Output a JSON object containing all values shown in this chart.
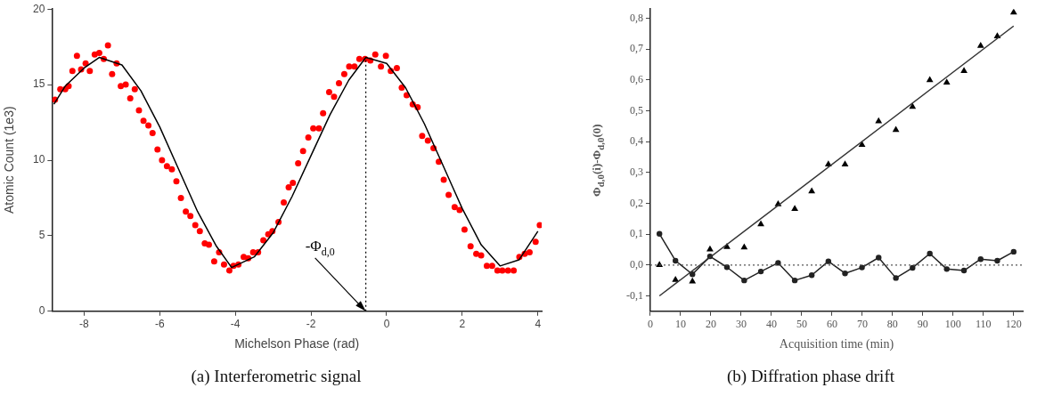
{
  "chart_data": [
    {
      "type": "scatter",
      "title": "(a) Interferometric signal",
      "xlabel": "Michelson Phase (rad)",
      "ylabel": "Atomic Count (1e3)",
      "xlim": [
        -8.85,
        4.1
      ],
      "ylim": [
        0,
        20
      ],
      "xticks": [
        -8,
        -6,
        -4,
        -2,
        0,
        2,
        4
      ],
      "yticks": [
        0,
        5,
        10,
        15,
        20
      ],
      "grid": false,
      "ref_lines": [
        {
          "axis": "x",
          "value": -0.55,
          "label": "-Φ$_{d,0}$",
          "color": "#000000",
          "line_style": "dotted"
        }
      ],
      "series": [
        {
          "type": "scatter",
          "color": "#ff0000",
          "marker": "circle",
          "x": [
            -8.77,
            -8.63,
            -8.5,
            -8.41,
            -8.31,
            -8.19,
            -8.08,
            -7.96,
            -7.85,
            -7.72,
            -7.6,
            -7.48,
            -7.37,
            -7.26,
            -7.14,
            -7.03,
            -6.9,
            -6.78,
            -6.66,
            -6.55,
            -6.43,
            -6.3,
            -6.19,
            -6.06,
            -5.94,
            -5.81,
            -5.68,
            -5.56,
            -5.44,
            -5.31,
            -5.19,
            -5.06,
            -4.94,
            -4.81,
            -4.7,
            -4.56,
            -4.43,
            -4.3,
            -4.16,
            -4.05,
            -3.92,
            -3.78,
            -3.66,
            -3.53,
            -3.4,
            -3.26,
            -3.13,
            -3.02,
            -2.86,
            -2.72,
            -2.59,
            -2.48,
            -2.34,
            -2.21,
            -2.07,
            -1.94,
            -1.79,
            -1.68,
            -1.52,
            -1.39,
            -1.26,
            -1.12,
            -0.99,
            -0.85,
            -0.72,
            -0.57,
            -0.43,
            -0.3,
            -0.15,
            -0.02,
            0.11,
            0.27,
            0.4,
            0.53,
            0.69,
            0.82,
            0.94,
            1.09,
            1.24,
            1.38,
            1.51,
            1.64,
            1.8,
            1.93,
            2.06,
            2.22,
            2.37,
            2.5,
            2.65,
            2.79,
            2.93,
            3.06,
            3.21,
            3.36,
            3.51,
            3.65,
            3.78,
            3.94,
            4.05
          ],
          "values": [
            14.0,
            14.7,
            14.7,
            14.9,
            15.9,
            16.9,
            16.0,
            16.4,
            15.9,
            17.0,
            17.1,
            16.7,
            17.6,
            15.7,
            16.4,
            14.9,
            15.0,
            14.1,
            14.7,
            13.3,
            12.6,
            12.3,
            11.8,
            10.7,
            10.0,
            9.6,
            9.4,
            8.6,
            7.5,
            6.6,
            6.3,
            5.7,
            5.3,
            4.5,
            4.4,
            3.3,
            3.9,
            3.1,
            2.7,
            3.0,
            3.1,
            3.6,
            3.5,
            3.9,
            3.9,
            4.7,
            5.1,
            5.3,
            5.9,
            7.2,
            8.2,
            8.5,
            9.8,
            10.6,
            11.5,
            12.1,
            12.1,
            13.1,
            14.5,
            14.2,
            15.1,
            15.7,
            16.2,
            16.2,
            16.7,
            16.7,
            16.6,
            17.0,
            16.2,
            16.9,
            15.9,
            16.1,
            14.8,
            14.3,
            13.7,
            13.5,
            11.6,
            11.3,
            10.8,
            9.9,
            8.7,
            7.7,
            6.9,
            6.7,
            5.4,
            4.3,
            3.8,
            3.7,
            3.0,
            3.0,
            2.7,
            2.7,
            2.7,
            2.7,
            3.6,
            3.8,
            3.9,
            4.6,
            5.7
          ]
        },
        {
          "type": "line",
          "color": "#000000",
          "marker": "none",
          "x": [
            -8.8,
            -8.5,
            -8,
            -7.6,
            -7,
            -6.5,
            -6,
            -5.5,
            -5,
            -4.5,
            -4.1,
            -3.5,
            -3,
            -2.5,
            -2,
            -1.5,
            -1,
            -0.55,
            0,
            0.5,
            1,
            1.5,
            2,
            2.5,
            3,
            3.5,
            4
          ],
          "values": [
            13.7,
            14.9,
            16.1,
            16.8,
            16.3,
            14.6,
            12.2,
            9.4,
            6.6,
            4.3,
            2.9,
            3.6,
            5.2,
            7.6,
            10.3,
            13.0,
            15.3,
            16.8,
            16.4,
            14.8,
            12.4,
            9.6,
            6.8,
            4.4,
            3.0,
            3.4,
            5.3
          ]
        }
      ]
    },
    {
      "type": "scatter",
      "title": "(b) Diffration phase drift",
      "xlabel": "Acquisition time (min)",
      "ylabel": "Φ$_{d,0}$(i)-Φ$_{d,0}$(0)",
      "xlim": [
        0,
        123
      ],
      "ylim": [
        -0.15,
        0.83
      ],
      "xticks": [
        0,
        10,
        20,
        30,
        40,
        50,
        60,
        70,
        80,
        90,
        100,
        110,
        120
      ],
      "yticks": [
        {
          "value": -0.1,
          "label": "-0,1"
        },
        {
          "value": 0,
          "label": "0,0"
        },
        {
          "value": 0.1,
          "label": "0,1"
        },
        {
          "value": 0.2,
          "label": "0,2"
        },
        {
          "value": 0.3,
          "label": "0,3"
        },
        {
          "value": 0.4,
          "label": "0,4"
        },
        {
          "value": 0.5,
          "label": "0,5"
        },
        {
          "value": 0.6,
          "label": "0,6"
        },
        {
          "value": 0.7,
          "label": "0,7"
        },
        {
          "value": 0.8,
          "label": "0,8"
        }
      ],
      "grid": false,
      "ref_lines": [
        {
          "axis": "y",
          "value": 0,
          "color": "#555555",
          "line_style": "dotted"
        }
      ],
      "series": [
        {
          "type": "scatter",
          "color": "#000000",
          "marker": "triangle",
          "x": [
            3.0,
            8.3,
            13.9,
            19.7,
            25.3,
            31.0,
            36.5,
            42.2,
            47.7,
            53.3,
            58.8,
            64.3,
            69.9,
            75.4,
            81.1,
            86.6,
            92.3,
            97.9,
            103.6,
            109.1,
            114.6,
            120.0
          ],
          "values": [
            0.0,
            -0.048,
            -0.053,
            0.051,
            0.059,
            0.057,
            0.132,
            0.197,
            0.182,
            0.239,
            0.326,
            0.326,
            0.39,
            0.466,
            0.438,
            0.513,
            0.6,
            0.592,
            0.629,
            0.711,
            0.742,
            0.819
          ]
        },
        {
          "type": "line",
          "color": "#333333",
          "marker": "none",
          "x": [
            3.0,
            120.0
          ],
          "values": [
            -0.1,
            0.775
          ]
        },
        {
          "type": "line",
          "color": "#222222",
          "marker": "circle",
          "x": [
            3.0,
            8.3,
            13.9,
            19.7,
            25.3,
            31.0,
            36.5,
            42.2,
            47.7,
            53.3,
            58.8,
            64.3,
            69.9,
            75.4,
            81.1,
            86.6,
            92.3,
            97.9,
            103.6,
            109.1,
            114.6,
            120.0
          ],
          "values": [
            0.101,
            0.014,
            -0.03,
            0.028,
            -0.007,
            -0.05,
            -0.021,
            0.007,
            -0.05,
            -0.033,
            0.012,
            -0.027,
            -0.008,
            0.024,
            -0.042,
            -0.009,
            0.037,
            -0.013,
            -0.018,
            0.019,
            0.014,
            0.043
          ]
        }
      ]
    }
  ]
}
